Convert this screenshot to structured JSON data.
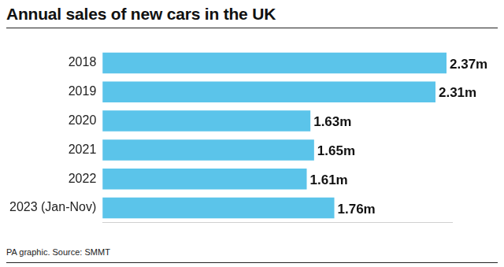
{
  "chart_data": {
    "type": "bar",
    "title": "Annual sales of new cars in the UK",
    "caption": "PA graphic. Source: SMMT",
    "categories": [
      "2018",
      "2019",
      "2020",
      "2021",
      "2022",
      "2023 (Jan-Nov)"
    ],
    "values": [
      2.37,
      2.31,
      1.63,
      1.65,
      1.61,
      1.76
    ],
    "value_labels": [
      "2.37m",
      "2.31m",
      "1.63m",
      "1.65m",
      "1.61m",
      "1.76m"
    ],
    "color": "#5bc4ea",
    "orientation": "horizontal",
    "xlim": [
      0.5,
      2.4
    ],
    "grid": false,
    "data_labels": true,
    "tick_labels": "y"
  }
}
